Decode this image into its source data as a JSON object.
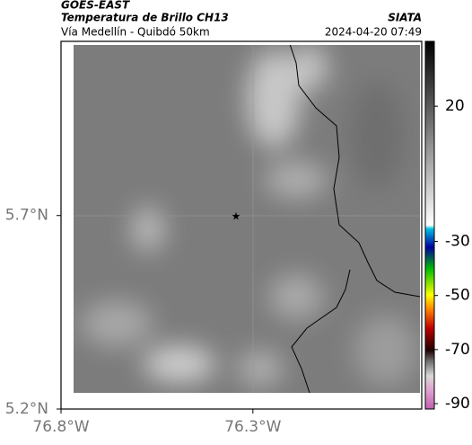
{
  "header": {
    "source": "GOES-EAST",
    "title": "Temperatura de Brillo CH13",
    "agency": "SIATA",
    "subtitle": "Vía Medellín - Quibdó 50km",
    "timestamp": "2024-04-20 07:49"
  },
  "map": {
    "xlim": [
      -76.8,
      -75.86
    ],
    "ylim": [
      5.2,
      6.15
    ],
    "xticks": [
      {
        "value": -76.8,
        "label": "76.8°W"
      },
      {
        "value": -76.3,
        "label": "76.3°W"
      }
    ],
    "yticks": [
      {
        "value": 5.2,
        "label": "5.2°N"
      },
      {
        "value": 5.7,
        "label": "5.7°N"
      }
    ]
  },
  "colorbar": {
    "lim": [
      -92,
      44
    ],
    "ticks": [
      20,
      -30,
      -50,
      -70,
      -90
    ]
  }
}
